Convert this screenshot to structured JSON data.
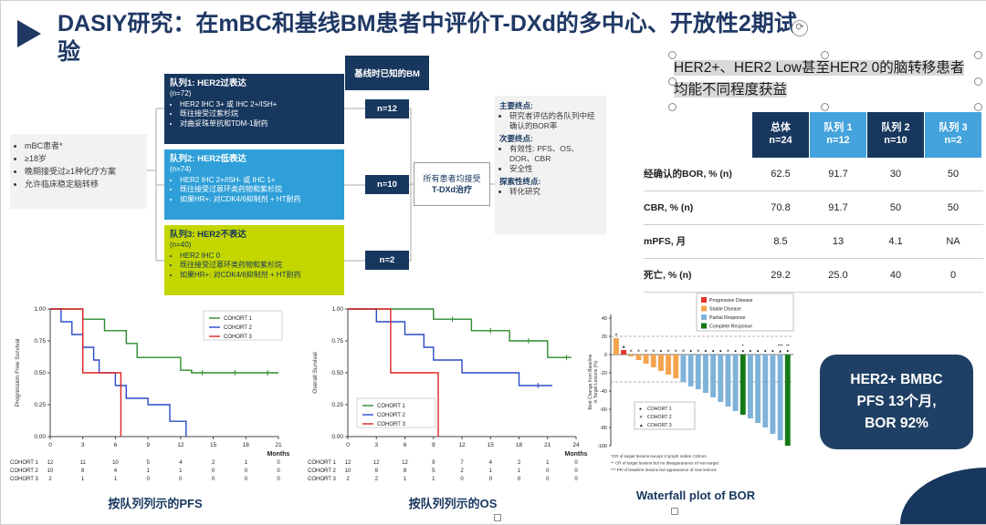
{
  "slide": {
    "title": "DASIY研究：在mBC和基线BM患者中评价T-DXd的多中心、开放性2期试验"
  },
  "icons": {
    "rotate": "⟳"
  },
  "colors": {
    "primary_navy": "#17375E",
    "title_navy": "#1F3864",
    "light_blue": "#2E9FD8",
    "lime_green": "#C3D600",
    "table_light_blue": "#44A3DC"
  },
  "flow": {
    "patient_box": {
      "bullets": [
        "mBC患者*",
        "≥18岁",
        "晚期接受过≥1种化疗方案",
        "允许临床稳定脑转移"
      ]
    },
    "bm_header": "基线时已知的BM",
    "cohorts": [
      {
        "title": "队列1: HER2过表达",
        "n": "(n=72)",
        "bullets": [
          "HER2 IHC 3+ 或 IHC 2+/ISH+",
          "既往接受过紫杉烷",
          "对曲妥珠单抗和TDM-1耐药"
        ],
        "bm_n": "n=12"
      },
      {
        "title": "队列2: HER2低表达",
        "n": "(n=74)",
        "bullets": [
          "HER2 IHC 2+/ISH- 或 IHC 1+",
          "既往接受过蒽环类药物和紫杉烷",
          "如果HR+: 对CDK4/6抑制剂 + HT耐药"
        ],
        "bm_n": "n=10"
      },
      {
        "title": "队列3: HER2不表达",
        "n": "(n=40)",
        "bullets": [
          "HER2 IHC 0",
          "既往接受过蒽环类药物和紫杉烷",
          "如果HR+: 对CDK4/6抑制剂 + HT耐药"
        ],
        "bm_n": "n=2"
      }
    ],
    "treatment_box": {
      "line1": "所有患者均接受",
      "line2": "T-DXd治疗"
    },
    "endpoints": {
      "primary_label": "主要终点:",
      "primary_items": [
        "研究者评估的各队列中经确认的BOR率"
      ],
      "secondary_label": "次要终点:",
      "secondary_items": [
        "有效性: PFS、OS、DOR、CBR",
        "安全性"
      ],
      "exploratory_label": "探索性终点:",
      "exploratory_items": [
        "转化研究"
      ]
    }
  },
  "quote": {
    "text": "HER2+、HER2 Low甚至HER2 0的脑转移患者均能不同程度获益"
  },
  "results_table": {
    "columns": [
      {
        "label": "总体",
        "n": "n=24",
        "style": "dark"
      },
      {
        "label": "队列 1",
        "n": "n=12",
        "style": "light"
      },
      {
        "label": "队列 2",
        "n": "n=10",
        "style": "dark"
      },
      {
        "label": "队列 3",
        "n": "n=2",
        "style": "light"
      }
    ],
    "rows": [
      {
        "label": "经确认的BOR, % (n)",
        "values": [
          "62.5",
          "91.7",
          "30",
          "50"
        ]
      },
      {
        "label": "CBR, % (n)",
        "values": [
          "70.8",
          "91.7",
          "50",
          "50"
        ]
      },
      {
        "label": "mPFS, 月",
        "values": [
          "8.5",
          "13",
          "4.1",
          "NA"
        ]
      },
      {
        "label": "死亡, % (n)",
        "values": [
          "29.2",
          "25.0",
          "40",
          "0"
        ]
      }
    ]
  },
  "highlight_box": {
    "line1": "HER2+ BMBC",
    "line2": "PFS 13个月,",
    "line3": "BOR 92%"
  },
  "chart_data": [
    {
      "id": "pfs_km",
      "type": "line",
      "subtype": "kaplan-meier",
      "title": "按队列列示的PFS",
      "xlabel": "Months",
      "ylabel": "Progression Free Survival",
      "xlim": [
        0,
        21
      ],
      "xticks": [
        0,
        3,
        6,
        9,
        12,
        15,
        18,
        21
      ],
      "ylim": [
        0,
        1
      ],
      "yticks": [
        1.0,
        0.75,
        0.5,
        0.25,
        0.0
      ],
      "legend_position": "top-right",
      "series": [
        {
          "name": "COHORT 1",
          "color": "#2E8B2E",
          "points": [
            [
              0,
              1
            ],
            [
              3,
              1
            ],
            [
              3,
              0.92
            ],
            [
              5,
              0.92
            ],
            [
              5,
              0.83
            ],
            [
              7,
              0.83
            ],
            [
              7,
              0.73
            ],
            [
              8,
              0.73
            ],
            [
              8,
              0.62
            ],
            [
              12,
              0.62
            ],
            [
              12,
              0.52
            ],
            [
              13,
              0.52
            ],
            [
              13,
              0.5
            ],
            [
              21,
              0.5
            ]
          ],
          "censors": [
            [
              14,
              0.5
            ],
            [
              17,
              0.5
            ],
            [
              20,
              0.5
            ]
          ]
        },
        {
          "name": "COHORT 2",
          "color": "#2B4BC8",
          "points": [
            [
              0,
              1
            ],
            [
              1,
              1
            ],
            [
              1,
              0.9
            ],
            [
              2,
              0.9
            ],
            [
              2,
              0.8
            ],
            [
              3,
              0.8
            ],
            [
              3,
              0.7
            ],
            [
              4,
              0.7
            ],
            [
              4,
              0.6
            ],
            [
              4.5,
              0.6
            ],
            [
              4.5,
              0.5
            ],
            [
              6,
              0.5
            ],
            [
              6,
              0.4
            ],
            [
              7,
              0.4
            ],
            [
              7,
              0.3
            ],
            [
              9,
              0.3
            ],
            [
              9,
              0.25
            ],
            [
              11,
              0.25
            ],
            [
              11,
              0.12
            ],
            [
              12.5,
              0.12
            ],
            [
              12.5,
              0
            ]
          ]
        },
        {
          "name": "COHORT 3",
          "color": "#E02424",
          "points": [
            [
              0,
              1
            ],
            [
              3,
              1
            ],
            [
              3,
              0.5
            ],
            [
              6.5,
              0.5
            ],
            [
              6.5,
              0
            ]
          ]
        }
      ],
      "risk_rows": [
        {
          "name": "COHORT 1",
          "counts": [
            12,
            11,
            10,
            5,
            4,
            2,
            1,
            0
          ]
        },
        {
          "name": "COHORT 2",
          "counts": [
            10,
            8,
            4,
            1,
            1,
            0,
            0,
            0
          ]
        },
        {
          "name": "COHORT 3",
          "counts": [
            2,
            1,
            1,
            0,
            0,
            0,
            0,
            0
          ]
        }
      ]
    },
    {
      "id": "os_km",
      "type": "line",
      "subtype": "kaplan-meier",
      "title": "按队列列示的OS",
      "xlabel": "Months",
      "ylabel": "Overall Survival",
      "xlim": [
        0,
        24
      ],
      "xticks": [
        0,
        3,
        6,
        9,
        12,
        15,
        18,
        21,
        24
      ],
      "ylim": [
        0,
        1
      ],
      "yticks": [
        1.0,
        0.75,
        0.5,
        0.25,
        0.0
      ],
      "legend_position": "bottom-left",
      "series": [
        {
          "name": "COHORT 1",
          "color": "#2E8B2E",
          "points": [
            [
              0,
              1
            ],
            [
              9,
              1
            ],
            [
              9,
              0.92
            ],
            [
              13,
              0.92
            ],
            [
              13,
              0.83
            ],
            [
              17,
              0.83
            ],
            [
              17,
              0.75
            ],
            [
              21,
              0.75
            ],
            [
              21,
              0.62
            ],
            [
              23.5,
              0.62
            ]
          ],
          "censors": [
            [
              11,
              0.92
            ],
            [
              15,
              0.83
            ],
            [
              19,
              0.75
            ],
            [
              23,
              0.62
            ]
          ]
        },
        {
          "name": "COHORT 2",
          "color": "#2B4BC8",
          "points": [
            [
              0,
              1
            ],
            [
              3,
              1
            ],
            [
              3,
              0.9
            ],
            [
              6,
              0.9
            ],
            [
              6,
              0.8
            ],
            [
              8,
              0.8
            ],
            [
              8,
              0.7
            ],
            [
              9,
              0.7
            ],
            [
              9,
              0.6
            ],
            [
              12,
              0.6
            ],
            [
              12,
              0.5
            ],
            [
              18,
              0.5
            ],
            [
              18,
              0.4
            ],
            [
              21.5,
              0.4
            ]
          ],
          "censors": [
            [
              20,
              0.4
            ]
          ]
        },
        {
          "name": "COHORT 3",
          "color": "#E02424",
          "points": [
            [
              0,
              1
            ],
            [
              4.5,
              1
            ],
            [
              4.5,
              0.5
            ],
            [
              9.5,
              0.5
            ],
            [
              9.5,
              0
            ]
          ]
        }
      ],
      "risk_rows": [
        {
          "name": "COHORT 1",
          "counts": [
            12,
            12,
            12,
            9,
            7,
            4,
            2,
            1,
            0
          ]
        },
        {
          "name": "COHORT 2",
          "counts": [
            10,
            9,
            8,
            5,
            2,
            1,
            1,
            0,
            0
          ]
        },
        {
          "name": "COHORT 3",
          "counts": [
            2,
            2,
            1,
            1,
            0,
            0,
            0,
            0,
            0
          ]
        }
      ]
    },
    {
      "id": "waterfall_bor",
      "type": "bar",
      "subtype": "waterfall",
      "title": "Waterfall plot of BOR",
      "ylabel_lines": [
        "Best Change from Baseline",
        "in Target Lesions (%)"
      ],
      "ylim": [
        -100,
        40
      ],
      "yticks": [
        40,
        20,
        0,
        -20,
        -40,
        -60,
        -80,
        -100
      ],
      "reference_lines": [
        20,
        -30
      ],
      "categories_legend": [
        {
          "key": "PD",
          "label": "Progressive Disease",
          "color": "#E63229"
        },
        {
          "key": "SD",
          "label": "Stable Disease",
          "color": "#F4A44C"
        },
        {
          "key": "PR",
          "label": "Partial Response",
          "color": "#7FB2D9"
        },
        {
          "key": "CR",
          "label": "Complete Response",
          "color": "#157A15"
        }
      ],
      "cohort_legend": [
        {
          "symbol": "●",
          "label": "COHORT 1"
        },
        {
          "symbol": "✕",
          "label": "COHORT 2"
        },
        {
          "symbol": "▲",
          "label": "COHORT 3"
        }
      ],
      "bars": [
        {
          "value": 18,
          "category": "SD",
          "cohort": 2
        },
        {
          "value": 5,
          "category": "PD",
          "cohort": 3
        },
        {
          "value": -2,
          "category": "SD",
          "cohort": 2
        },
        {
          "value": -6,
          "category": "SD",
          "cohort": 2
        },
        {
          "value": -10,
          "category": "SD",
          "cohort": 2
        },
        {
          "value": -14,
          "category": "SD",
          "cohort": 2
        },
        {
          "value": -18,
          "category": "SD",
          "cohort": 1
        },
        {
          "value": -22,
          "category": "SD",
          "cohort": 2
        },
        {
          "value": -26,
          "category": "SD",
          "cohort": 2
        },
        {
          "value": -30,
          "category": "PR",
          "cohort": 2
        },
        {
          "value": -35,
          "category": "PR",
          "cohort": 1
        },
        {
          "value": -38,
          "category": "PR",
          "cohort": 2
        },
        {
          "value": -42,
          "category": "PR",
          "cohort": 1
        },
        {
          "value": -47,
          "category": "PR",
          "cohort": 1
        },
        {
          "value": -52,
          "category": "PR",
          "cohort": 1
        },
        {
          "value": -57,
          "category": "PR",
          "cohort": 2
        },
        {
          "value": -62,
          "category": "PR",
          "cohort": 1
        },
        {
          "value": -66,
          "category": "CR",
          "cohort": 1,
          "flag": "*"
        },
        {
          "value": -70,
          "category": "PR",
          "cohort": 1
        },
        {
          "value": -75,
          "category": "PR",
          "cohort": 1
        },
        {
          "value": -80,
          "category": "PR",
          "cohort": 1
        },
        {
          "value": -87,
          "category": "PR",
          "cohort": 1
        },
        {
          "value": -94,
          "category": "PR",
          "cohort": 3,
          "flag": "***"
        },
        {
          "value": -100,
          "category": "CR",
          "cohort": 1,
          "flag": "**"
        }
      ],
      "footnotes": [
        "*CR of target lesions except 2 lymph nodes <10mm",
        "** CR of target lesions but no disappearance of non-target",
        "*** PR of baseline lesions but appearance of new lesions"
      ]
    }
  ]
}
